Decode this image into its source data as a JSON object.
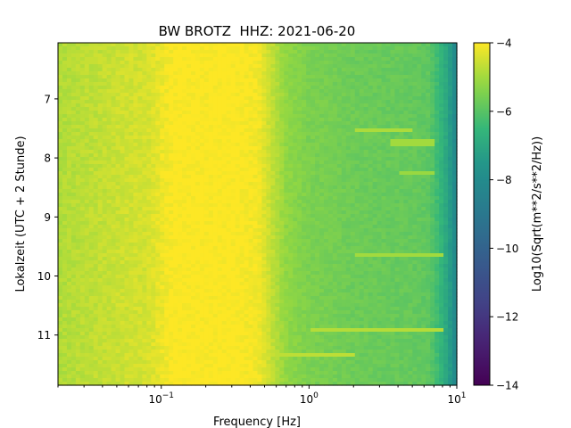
{
  "chart_data": {
    "type": "heatmap",
    "title": "BW BROTZ  HHZ: 2021-06-20",
    "xlabel": "Frequency [Hz]",
    "ylabel": "Lokalzeit (UTC + 2 Stunde)",
    "xscale": "log",
    "xlim": [
      0.02,
      10
    ],
    "ylim": [
      11.85,
      6.05
    ],
    "x_ticks": [
      {
        "value": 0.1,
        "base": "10",
        "exp": "−1"
      },
      {
        "value": 1,
        "base": "10",
        "exp": "0"
      },
      {
        "value": 10,
        "base": "10",
        "exp": "1"
      }
    ],
    "y_ticks": [
      7,
      8,
      9,
      10,
      11
    ],
    "colorbar": {
      "label": "Log10(Sqrt(m**2/s**2/Hz))",
      "range": [
        -14,
        -4
      ],
      "ticks": [
        -4,
        -6,
        -8,
        -10,
        -12,
        -14
      ],
      "tick_labels": [
        "−4",
        "−6",
        "−8",
        "−10",
        "−12",
        "−14"
      ],
      "colormap": "viridis"
    },
    "frequency_profile": {
      "freq_hz": [
        0.02,
        0.04,
        0.06,
        0.08,
        0.12,
        0.2,
        0.3,
        0.45,
        0.55,
        0.7,
        1.0,
        1.5,
        2.0,
        3.0,
        5.0,
        6.5,
        7.5,
        8.5,
        9.3,
        10.0
      ],
      "log10_amplitude": [
        -4.85,
        -4.65,
        -4.5,
        -4.45,
        -4.0,
        -4.0,
        -4.0,
        -4.1,
        -4.6,
        -5.2,
        -5.5,
        -5.6,
        -5.7,
        -5.75,
        -5.8,
        -5.9,
        -6.4,
        -7.0,
        -7.6,
        -8.3
      ]
    },
    "spectral_lines": [
      {
        "time": 7.55,
        "f_min": 2.0,
        "f_max": 5.0,
        "log10_amplitude": -4.9
      },
      {
        "time": 7.75,
        "f_min": 3.5,
        "f_max": 7.0,
        "log10_amplitude": -5.0
      },
      {
        "time": 8.25,
        "f_min": 4.0,
        "f_max": 7.0,
        "log10_amplitude": -5.1
      },
      {
        "time": 9.65,
        "f_min": 2.0,
        "f_max": 8.0,
        "log10_amplitude": -5.0
      },
      {
        "time": 10.9,
        "f_min": 1.0,
        "f_max": 8.0,
        "log10_amplitude": -4.8
      },
      {
        "time": 11.35,
        "f_min": 0.6,
        "f_max": 2.0,
        "log10_amplitude": -4.7
      }
    ]
  }
}
